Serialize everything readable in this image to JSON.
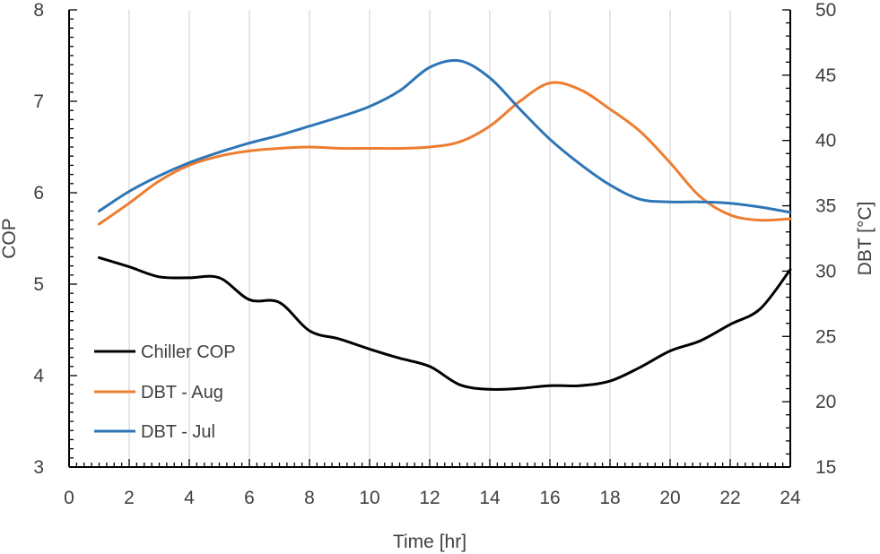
{
  "chart_data": {
    "type": "line",
    "title": "",
    "xlabel": "Time [hr]",
    "ylabel_left": "COP",
    "ylabel_right": "DBT [°C]",
    "xlim": [
      0,
      24
    ],
    "ylim_left": [
      3,
      8
    ],
    "ylim_right": [
      15,
      50
    ],
    "xticks": [
      "0",
      "2",
      "4",
      "6",
      "8",
      "10",
      "12",
      "14",
      "16",
      "18",
      "20",
      "22",
      "24"
    ],
    "yticks_left": [
      "3",
      "4",
      "5",
      "6",
      "7",
      "8"
    ],
    "yticks_right": [
      "15",
      "20",
      "25",
      "30",
      "35",
      "40",
      "45",
      "50"
    ],
    "grid": "vertical",
    "legend_position": "bottom-left",
    "series": [
      {
        "name": "Chiller COP",
        "axis": "left",
        "color": "#000000",
        "x": [
          1,
          2,
          3,
          4,
          5,
          6,
          7,
          8,
          9,
          10,
          11,
          12,
          13,
          14,
          15,
          16,
          17,
          18,
          19,
          20,
          21,
          22,
          23,
          24
        ],
        "y": [
          5.29,
          5.19,
          5.08,
          5.07,
          5.07,
          4.83,
          4.8,
          4.49,
          4.4,
          4.29,
          4.19,
          4.1,
          3.9,
          3.85,
          3.86,
          3.89,
          3.89,
          3.94,
          4.09,
          4.27,
          4.38,
          4.56,
          4.73,
          5.16
        ]
      },
      {
        "name": "DBT - Aug",
        "axis": "right",
        "color": "#ED7D31",
        "x": [
          1,
          2,
          3,
          4,
          5,
          6,
          7,
          8,
          9,
          10,
          11,
          12,
          13,
          14,
          15,
          16,
          17,
          18,
          19,
          20,
          21,
          22,
          23,
          24
        ],
        "y": [
          33.6,
          35.2,
          36.9,
          38.1,
          38.8,
          39.2,
          39.4,
          39.5,
          39.4,
          39.4,
          39.4,
          39.5,
          39.9,
          41.1,
          43.0,
          44.4,
          43.9,
          42.4,
          40.7,
          38.3,
          35.7,
          34.3,
          33.9,
          34.0
        ]
      },
      {
        "name": "DBT - Jul",
        "axis": "right",
        "color": "#2E75B6",
        "x": [
          1,
          2,
          3,
          4,
          5,
          6,
          7,
          8,
          9,
          10,
          11,
          12,
          13,
          14,
          15,
          16,
          17,
          18,
          19,
          20,
          21,
          22,
          23,
          24
        ],
        "y": [
          34.6,
          36.1,
          37.3,
          38.3,
          39.1,
          39.8,
          40.4,
          41.1,
          41.8,
          42.6,
          43.8,
          45.6,
          46.1,
          44.8,
          42.4,
          40.1,
          38.2,
          36.6,
          35.5,
          35.3,
          35.3,
          35.2,
          34.9,
          34.5
        ]
      }
    ]
  }
}
